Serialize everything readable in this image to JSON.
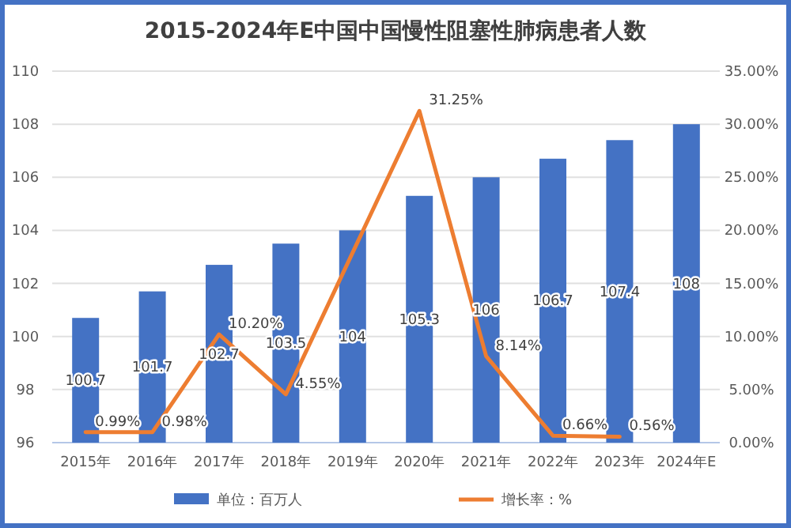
{
  "chart_data": {
    "type": "bar",
    "title": "2015-2024年E中国中国慢性阻塞性肺病患者人数",
    "categories": [
      "2015年",
      "2016年",
      "2017年",
      "2018年",
      "2019年",
      "2020年",
      "2021年",
      "2022年",
      "2023年",
      "2024年E"
    ],
    "series": [
      {
        "name": "单位：百万人",
        "color": "#4472c4",
        "values": [
          100.7,
          101.7,
          102.7,
          103.5,
          104,
          105.3,
          106,
          106.7,
          107.4,
          108
        ],
        "value_labels": [
          "100.7",
          "101.7",
          "102.7",
          "103.5",
          "104",
          "105.3",
          "106",
          "106.7",
          "107.4",
          "108"
        ]
      },
      {
        "name": "增长率：%",
        "type": "line",
        "axis": "y2",
        "color": "#ed7d31",
        "values": [
          0.99,
          0.98,
          10.2,
          4.55,
          17.9,
          31.25,
          8.14,
          0.66,
          0.56,
          null
        ],
        "value_labels": [
          "0.99%",
          "0.98%",
          "10.20%",
          "4.55%",
          null,
          "31.25%",
          "8.14%",
          "0.66%",
          "0.56%",
          null
        ]
      }
    ],
    "ylim": [
      96,
      110
    ],
    "yticks": [
      96,
      98,
      100,
      102,
      104,
      106,
      108,
      110
    ],
    "y2lim": [
      0,
      35
    ],
    "y2ticks": [
      {
        "value": 0,
        "label": "0.00%"
      },
      {
        "value": 5,
        "label": "5.00%"
      },
      {
        "value": 10,
        "label": "10.00%"
      },
      {
        "value": 15,
        "label": "15.00%"
      },
      {
        "value": 20,
        "label": "20.00%"
      },
      {
        "value": 25,
        "label": "25.00%"
      },
      {
        "value": 30,
        "label": "30.00%"
      },
      {
        "value": 35,
        "label": "35.00%"
      }
    ],
    "grid": "y",
    "legend": "bottom",
    "marker": "none",
    "line_style": "solid"
  }
}
